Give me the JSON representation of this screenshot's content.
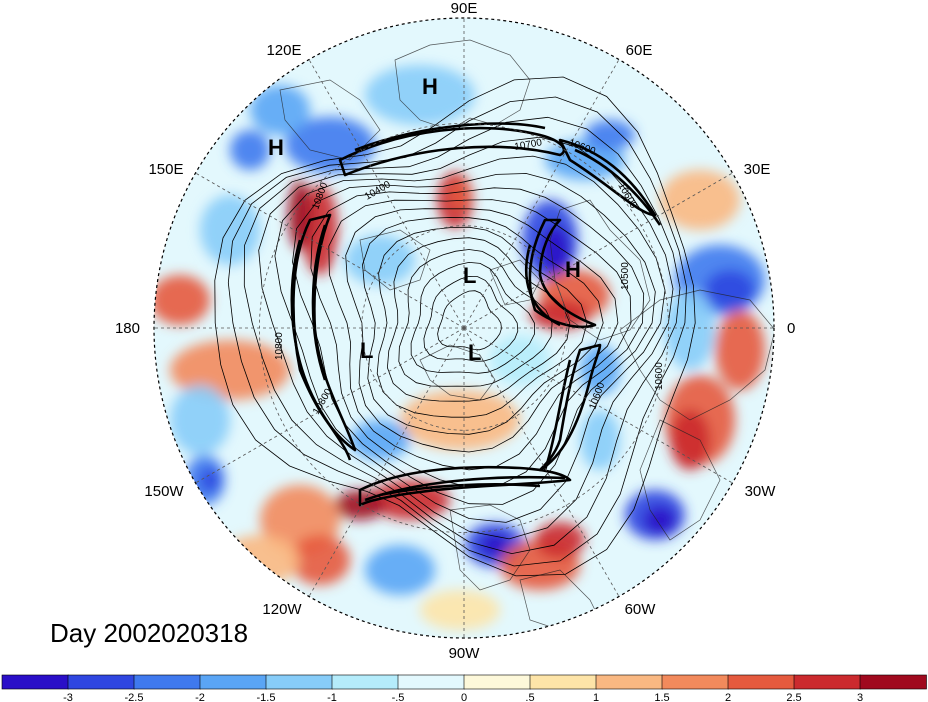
{
  "title": "Day 2002020318",
  "longitude_labels": [
    "90E",
    "60E",
    "30E",
    "0",
    "30W",
    "60W",
    "90W",
    "120W",
    "150W",
    "180",
    "150E",
    "120E"
  ],
  "pressure_centers": [
    {
      "label": "H"
    },
    {
      "label": "H"
    },
    {
      "label": "H"
    },
    {
      "label": "L"
    },
    {
      "label": "L"
    },
    {
      "label": "L"
    }
  ],
  "contour_labels": [
    "10700",
    "10600",
    "10400",
    "10800",
    "10600",
    "10800",
    "10800",
    "10600",
    "10600",
    "10500"
  ],
  "colorbar": {
    "ticks": [
      "-3",
      "-2.5",
      "-2",
      "-1.5",
      "-1",
      "-.5",
      "0",
      ".5",
      "1",
      "1.5",
      "2",
      "2.5",
      "3"
    ],
    "colors": [
      "#2a0fc8",
      "#2f46e0",
      "#3f79ee",
      "#5aa5f5",
      "#87ccf8",
      "#b5ecfb",
      "#e3f8fd",
      "#fdf8da",
      "#fde4a8",
      "#f9b882",
      "#f28a5c",
      "#e55a3e",
      "#cb2a2e",
      "#a0091e"
    ]
  }
}
